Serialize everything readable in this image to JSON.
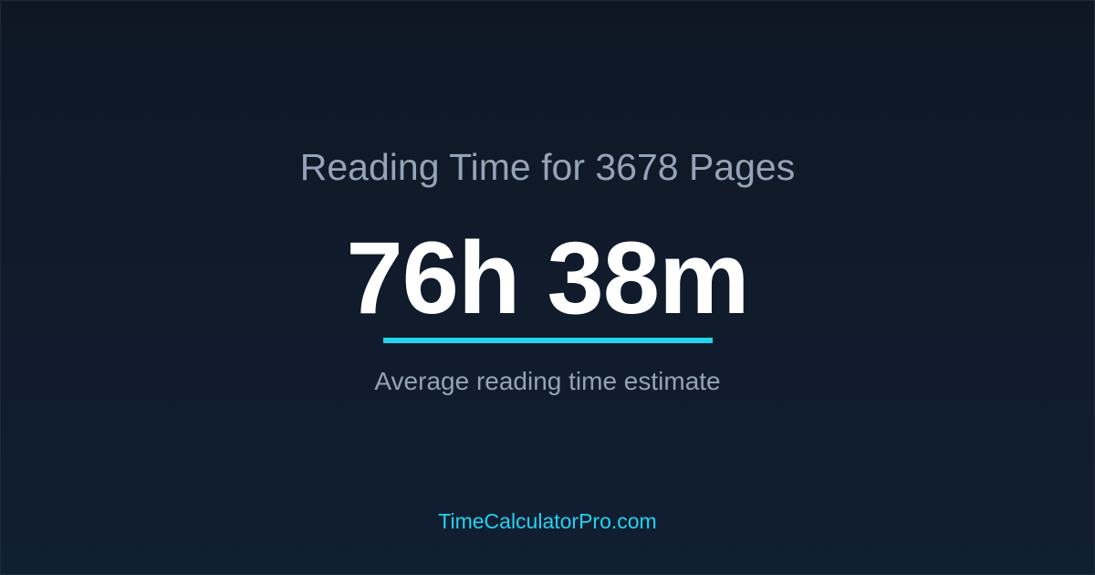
{
  "title": "Reading Time for 3678 Pages",
  "result": "76h 38m",
  "subtitle": "Average reading time estimate",
  "footer": "TimeCalculatorPro.com",
  "colors": {
    "accent": "#22d3ee",
    "background": "#0f172a",
    "muted_text": "#94a3b8",
    "primary_text": "#ffffff"
  }
}
